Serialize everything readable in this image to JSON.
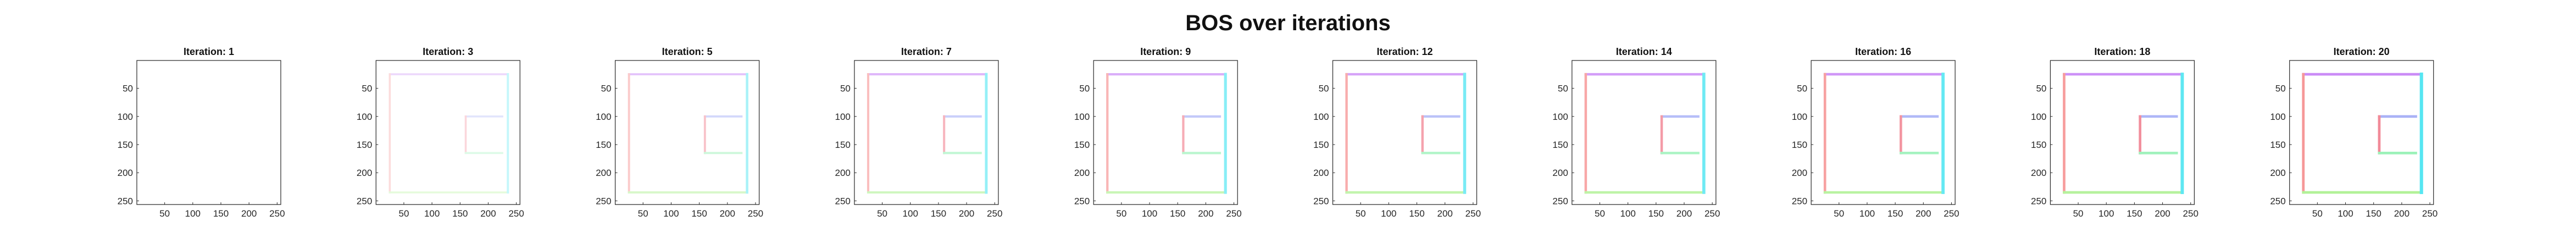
{
  "figure": {
    "title": "BOS over iterations"
  },
  "chart_data": [
    {
      "type": "heatmap",
      "title": "Iteration: 1",
      "iteration": 1,
      "xticks": [
        50,
        100,
        150,
        200,
        250
      ],
      "yticks": [
        50,
        100,
        150,
        200,
        250
      ],
      "xlim": [
        1,
        256
      ],
      "ylim": [
        1,
        256
      ],
      "grid": false,
      "square_outer": [
        25,
        235
      ],
      "square_inner": [
        160,
        225
      ],
      "intensity": 0.0
    },
    {
      "type": "heatmap",
      "title": "Iteration: 3",
      "iteration": 3,
      "xticks": [
        50,
        100,
        150,
        200,
        250
      ],
      "yticks": [
        50,
        100,
        150,
        200,
        250
      ],
      "xlim": [
        1,
        256
      ],
      "ylim": [
        1,
        256
      ],
      "grid": false,
      "square_outer": [
        25,
        235
      ],
      "square_inner": [
        160,
        225
      ],
      "intensity": 0.3
    },
    {
      "type": "heatmap",
      "title": "Iteration: 5",
      "iteration": 5,
      "xticks": [
        50,
        100,
        150,
        200,
        250
      ],
      "yticks": [
        50,
        100,
        150,
        200,
        250
      ],
      "xlim": [
        1,
        256
      ],
      "ylim": [
        1,
        256
      ],
      "grid": false,
      "square_outer": [
        25,
        235
      ],
      "square_inner": [
        160,
        225
      ],
      "intensity": 0.45
    },
    {
      "type": "heatmap",
      "title": "Iteration: 7",
      "iteration": 7,
      "xticks": [
        50,
        100,
        150,
        200,
        250
      ],
      "yticks": [
        50,
        100,
        150,
        200,
        250
      ],
      "xlim": [
        1,
        256
      ],
      "ylim": [
        1,
        256
      ],
      "grid": false,
      "square_outer": [
        25,
        235
      ],
      "square_inner": [
        160,
        225
      ],
      "intensity": 0.55
    },
    {
      "type": "heatmap",
      "title": "Iteration: 9",
      "iteration": 9,
      "xticks": [
        50,
        100,
        150,
        200,
        250
      ],
      "yticks": [
        50,
        100,
        150,
        200,
        250
      ],
      "xlim": [
        1,
        256
      ],
      "ylim": [
        1,
        256
      ],
      "grid": false,
      "square_outer": [
        25,
        235
      ],
      "square_inner": [
        160,
        225
      ],
      "intensity": 0.62
    },
    {
      "type": "heatmap",
      "title": "Iteration: 12",
      "iteration": 12,
      "xticks": [
        50,
        100,
        150,
        200,
        250
      ],
      "yticks": [
        50,
        100,
        150,
        200,
        250
      ],
      "xlim": [
        1,
        256
      ],
      "ylim": [
        1,
        256
      ],
      "grid": false,
      "square_outer": [
        25,
        235
      ],
      "square_inner": [
        160,
        225
      ],
      "intensity": 0.7
    },
    {
      "type": "heatmap",
      "title": "Iteration: 14",
      "iteration": 14,
      "xticks": [
        50,
        100,
        150,
        200,
        250
      ],
      "yticks": [
        50,
        100,
        150,
        200,
        250
      ],
      "xlim": [
        1,
        256
      ],
      "ylim": [
        1,
        256
      ],
      "grid": false,
      "square_outer": [
        25,
        235
      ],
      "square_inner": [
        160,
        225
      ],
      "intensity": 0.75
    },
    {
      "type": "heatmap",
      "title": "Iteration: 16",
      "iteration": 16,
      "xticks": [
        50,
        100,
        150,
        200,
        250
      ],
      "yticks": [
        50,
        100,
        150,
        200,
        250
      ],
      "xlim": [
        1,
        256
      ],
      "ylim": [
        1,
        256
      ],
      "grid": false,
      "square_outer": [
        25,
        235
      ],
      "square_inner": [
        160,
        225
      ],
      "intensity": 0.8
    },
    {
      "type": "heatmap",
      "title": "Iteration: 18",
      "iteration": 18,
      "xticks": [
        50,
        100,
        150,
        200,
        250
      ],
      "yticks": [
        50,
        100,
        150,
        200,
        250
      ],
      "xlim": [
        1,
        256
      ],
      "ylim": [
        1,
        256
      ],
      "grid": false,
      "square_outer": [
        25,
        235
      ],
      "square_inner": [
        160,
        225
      ],
      "intensity": 0.84
    },
    {
      "type": "heatmap",
      "title": "Iteration: 20",
      "iteration": 20,
      "xticks": [
        50,
        100,
        150,
        200,
        250
      ],
      "yticks": [
        50,
        100,
        150,
        200,
        250
      ],
      "xlim": [
        1,
        256
      ],
      "ylim": [
        1,
        256
      ],
      "grid": false,
      "square_outer": [
        25,
        235
      ],
      "square_inner": [
        160,
        225
      ],
      "intensity": 0.88
    }
  ],
  "colors": {
    "top_edge": "#c47cf5",
    "left_edge": "#f58a8a",
    "bottom_edge": "#a8f08a",
    "right_edge": "#3fe3f0",
    "inner_left_edge": "#f07a8a",
    "inner_top_edge": "#9ea8f5",
    "inner_bottom_edge": "#8ff0b0",
    "axis": "#262626"
  }
}
